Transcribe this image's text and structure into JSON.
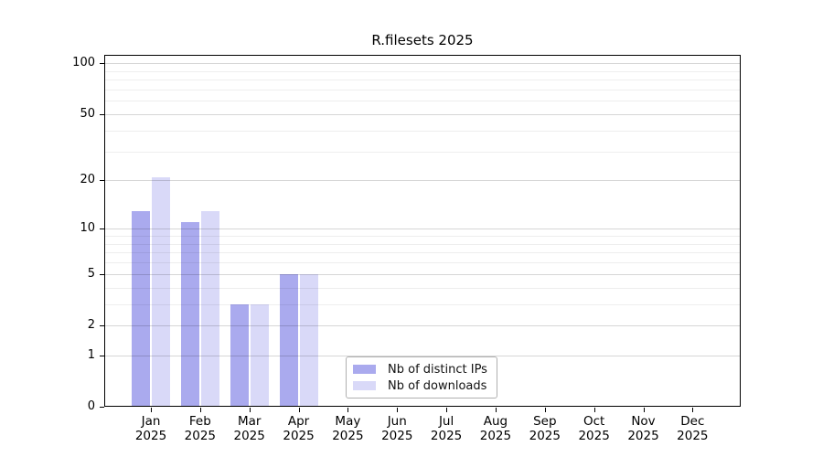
{
  "figure": {
    "title": "R.filesets 2025"
  },
  "chart_data": {
    "type": "bar",
    "title": "R.filesets 2025",
    "categories": [
      "Jan 2025",
      "Feb 2025",
      "Mar 2025",
      "Apr 2025",
      "May 2025",
      "Jun 2025",
      "Jul 2025",
      "Aug 2025",
      "Sep 2025",
      "Oct 2025",
      "Nov 2025",
      "Dec 2025"
    ],
    "x_months": [
      "Jan",
      "Feb",
      "Mar",
      "Apr",
      "May",
      "Jun",
      "Jul",
      "Aug",
      "Sep",
      "Oct",
      "Nov",
      "Dec"
    ],
    "x_year": "2025",
    "series": [
      {
        "key": "ips",
        "name": "Nb of distinct IPs",
        "color": "#aaaaee",
        "values": [
          13,
          11,
          3,
          5,
          0,
          0,
          0,
          0,
          0,
          0,
          0,
          0
        ]
      },
      {
        "key": "downloads",
        "name": "Nb of downloads",
        "color": "#d9d9f8",
        "values": [
          21,
          13,
          3,
          5,
          0,
          0,
          0,
          0,
          0,
          0,
          0,
          0
        ]
      }
    ],
    "y_axis": {
      "scale": "log10(1+v)",
      "major_ticks": [
        0,
        1,
        2,
        5,
        10,
        20,
        50,
        100
      ],
      "minor_gridlines": [
        3,
        4,
        6,
        7,
        8,
        9,
        30,
        40,
        60,
        70,
        80,
        90
      ],
      "ylim": [
        0,
        113
      ]
    },
    "grid": true,
    "legend_position": "lower center",
    "colors": {
      "grid_major": "rgba(0,0,0,0.16)",
      "grid_minor": "rgba(0,0,0,0.065)",
      "axis": "#000000",
      "legend_border": "#b0b0b0"
    }
  }
}
